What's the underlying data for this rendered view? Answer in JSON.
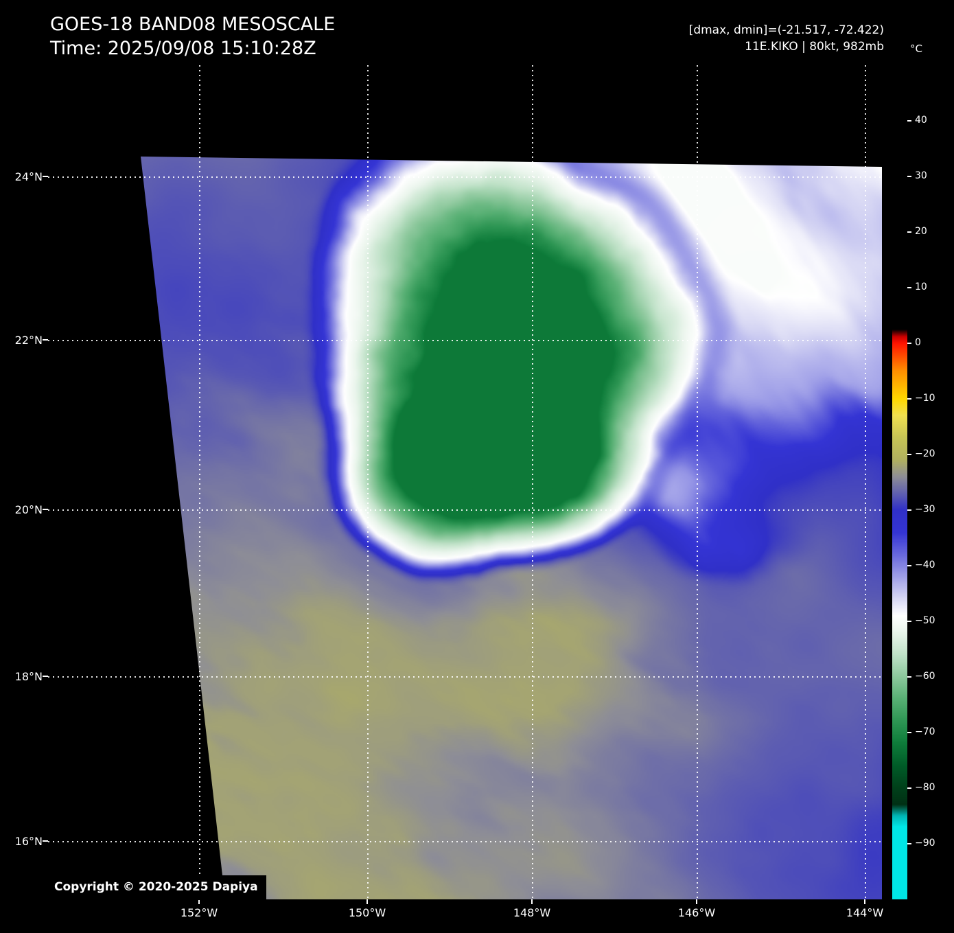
{
  "header": {
    "title": "GOES-18 BAND08 MESOSCALE",
    "time": "Time: 2025/09/08 15:10:28Z",
    "range_info": "[dmax, dmin]=(-21.517, -72.422)",
    "storm_info": "11E.KIKO | 80kt, 982mb"
  },
  "axes": {
    "lat_labels": [
      "24°N",
      "22°N",
      "20°N",
      "18°N",
      "16°N"
    ],
    "lon_labels": [
      "152°W",
      "150°W",
      "148°W",
      "146°W",
      "144°W"
    ]
  },
  "colorbar": {
    "unit": "°C",
    "ticks": [
      "40",
      "30",
      "20",
      "10",
      "0",
      "−10",
      "−20",
      "−30",
      "−40",
      "−50",
      "−60",
      "−70",
      "−80",
      "−90"
    ]
  },
  "footer": {
    "copyright": "Copyright © 2020-2025 Dapiya"
  },
  "colormap": [
    [
      50,
      "#000000"
    ],
    [
      2.5,
      "#000000"
    ],
    [
      1.2,
      "#cc0000"
    ],
    [
      0,
      "#ff1400"
    ],
    [
      -5,
      "#ff9000"
    ],
    [
      -10,
      "#ffd800"
    ],
    [
      -13,
      "#f0e050"
    ],
    [
      -17,
      "#c6c455"
    ],
    [
      -21,
      "#b0b060"
    ],
    [
      -24,
      "#8e8e96"
    ],
    [
      -27,
      "#6060b0"
    ],
    [
      -30,
      "#3030c8"
    ],
    [
      -34,
      "#3434d4"
    ],
    [
      -38,
      "#6868dc"
    ],
    [
      -42,
      "#a0a0e8"
    ],
    [
      -46,
      "#d8d8f4"
    ],
    [
      -49,
      "#ffffff"
    ],
    [
      -52,
      "#eaf5ec"
    ],
    [
      -56,
      "#c0e2c8"
    ],
    [
      -60,
      "#8cc89c"
    ],
    [
      -64,
      "#58b074"
    ],
    [
      -68,
      "#2e9654"
    ],
    [
      -72,
      "#0e7c3a"
    ],
    [
      -76,
      "#005c28"
    ],
    [
      -80,
      "#00401a"
    ],
    [
      -83,
      "#003014"
    ],
    [
      -85,
      "#00b4b4"
    ],
    [
      -87,
      "#00e6e6"
    ],
    [
      -100,
      "#00e6e6"
    ]
  ]
}
